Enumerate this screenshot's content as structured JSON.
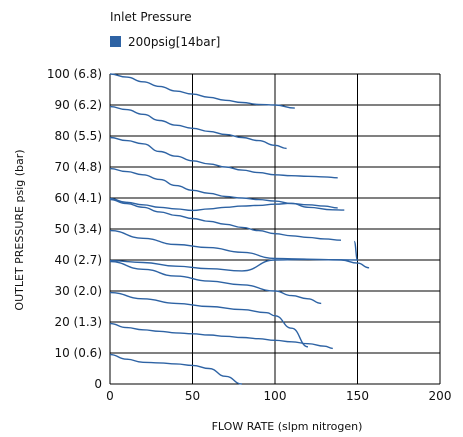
{
  "chart_data": {
    "type": "line",
    "title": "",
    "legend": {
      "title": "Inlet Pressure",
      "entries": [
        {
          "label": "200psig[14bar]",
          "color": "#2e63a4"
        }
      ],
      "placement": "top-left"
    },
    "xlabel": "FLOW RATE (slpm nitrogen)",
    "ylabel": "OUTLET PRESSURE psig (bar)",
    "xlim": [
      0,
      200
    ],
    "ylim": [
      0,
      100
    ],
    "x_ticks": [
      {
        "value": 0,
        "label": "0"
      },
      {
        "value": 50,
        "label": "50"
      },
      {
        "value": 100,
        "label": "100"
      },
      {
        "value": 150,
        "label": "150"
      },
      {
        "value": 200,
        "label": "200"
      }
    ],
    "y_ticks": [
      {
        "value": 0,
        "label": "0"
      },
      {
        "value": 10,
        "label": "10 (0.6)"
      },
      {
        "value": 20,
        "label": "20 (1.3)"
      },
      {
        "value": 30,
        "label": "30 (2.0)"
      },
      {
        "value": 40,
        "label": "40 (2.7)"
      },
      {
        "value": 50,
        "label": "50 (3.4)"
      },
      {
        "value": 60,
        "label": "60 (4.1)"
      },
      {
        "value": 70,
        "label": "70 (4.8)"
      },
      {
        "value": 80,
        "label": "80 (5.5)"
      },
      {
        "value": 90,
        "label": "90 (6.2)"
      },
      {
        "value": 100,
        "label": "100 (6.8)"
      }
    ],
    "grid": true,
    "series_color": "#2e63a4",
    "series": [
      {
        "x": [
          0,
          10,
          20,
          30,
          40,
          50,
          60,
          70,
          80
        ],
        "y": [
          9.5,
          8,
          7,
          6.8,
          6.5,
          6,
          5,
          2.5,
          0
        ]
      },
      {
        "x": [
          0,
          10,
          20,
          30,
          40,
          50,
          60,
          70,
          80,
          90,
          100,
          110,
          120,
          130,
          135
        ],
        "y": [
          19.5,
          18.2,
          17.5,
          17,
          16.5,
          16.2,
          15.8,
          15.4,
          15,
          14.6,
          14.1,
          13.6,
          13,
          12.2,
          11.5
        ]
      },
      {
        "x": [
          0,
          20,
          40,
          60,
          80,
          95,
          100,
          110,
          120
        ],
        "y": [
          29.5,
          27.5,
          26,
          25,
          24,
          23,
          22,
          18,
          12
        ]
      },
      {
        "x": [
          0,
          20,
          40,
          60,
          80,
          100,
          110,
          120,
          128
        ],
        "y": [
          39.5,
          37,
          34.8,
          33.2,
          32,
          30,
          28.5,
          27.5,
          26
        ]
      },
      {
        "x": [
          0,
          20,
          40,
          60,
          80,
          100,
          120,
          140,
          150,
          157
        ],
        "y": [
          39.8,
          39.2,
          38,
          37.2,
          36.5,
          40,
          40.2,
          40,
          39,
          37.5
        ]
      },
      {
        "x": [
          0,
          20,
          40,
          60,
          80,
          100,
          110,
          125,
          135,
          150,
          148
        ],
        "y": [
          49.5,
          47,
          45,
          44,
          42.5,
          40.5,
          40.4,
          40.2,
          40.1,
          40,
          46
        ]
      },
      {
        "x": [
          0,
          10,
          20,
          30,
          40,
          50,
          60,
          70,
          80,
          90,
          100,
          110,
          120,
          130,
          140
        ],
        "y": [
          59.5,
          58.2,
          57,
          55.5,
          54.4,
          53.4,
          52.5,
          51.5,
          50.5,
          49.5,
          48.5,
          47.8,
          47.3,
          46.8,
          46.4
        ]
      },
      {
        "x": [
          0,
          10,
          20,
          30,
          40,
          50,
          60,
          70,
          80,
          90,
          100,
          110,
          120,
          135,
          142
        ],
        "y": [
          59.8,
          58.6,
          57.8,
          57,
          56.5,
          56,
          56.5,
          57,
          57.4,
          57.6,
          58,
          58.3,
          57,
          56.2,
          56.1
        ]
      },
      {
        "x": [
          0,
          10,
          20,
          30,
          40,
          50,
          60,
          70,
          80,
          90,
          100,
          110,
          120,
          130,
          138
        ],
        "y": [
          69.5,
          68.5,
          67.5,
          66,
          64,
          62.5,
          61.5,
          60.5,
          60,
          59.5,
          59,
          58.2,
          57.8,
          57.4,
          56.8
        ]
      },
      {
        "x": [
          0,
          10,
          20,
          30,
          40,
          50,
          60,
          70,
          80,
          90,
          100,
          110,
          120,
          130,
          138
        ],
        "y": [
          79.5,
          78.5,
          77.5,
          75,
          73.5,
          72,
          71,
          70,
          69,
          68.2,
          67.5,
          67.2,
          67,
          66.8,
          66.5
        ]
      },
      {
        "x": [
          0,
          10,
          20,
          30,
          40,
          50,
          60,
          70,
          80,
          90,
          100,
          107
        ],
        "y": [
          89.5,
          88.5,
          87,
          85,
          83.5,
          82.5,
          81.5,
          80.5,
          79.5,
          78.5,
          77,
          76
        ]
      },
      {
        "x": [
          0,
          10,
          20,
          30,
          40,
          50,
          60,
          70,
          80,
          90,
          100,
          112
        ],
        "y": [
          100,
          99,
          97.5,
          96,
          94.5,
          93.5,
          92.5,
          91.5,
          90.8,
          90.2,
          90,
          89
        ]
      }
    ]
  }
}
